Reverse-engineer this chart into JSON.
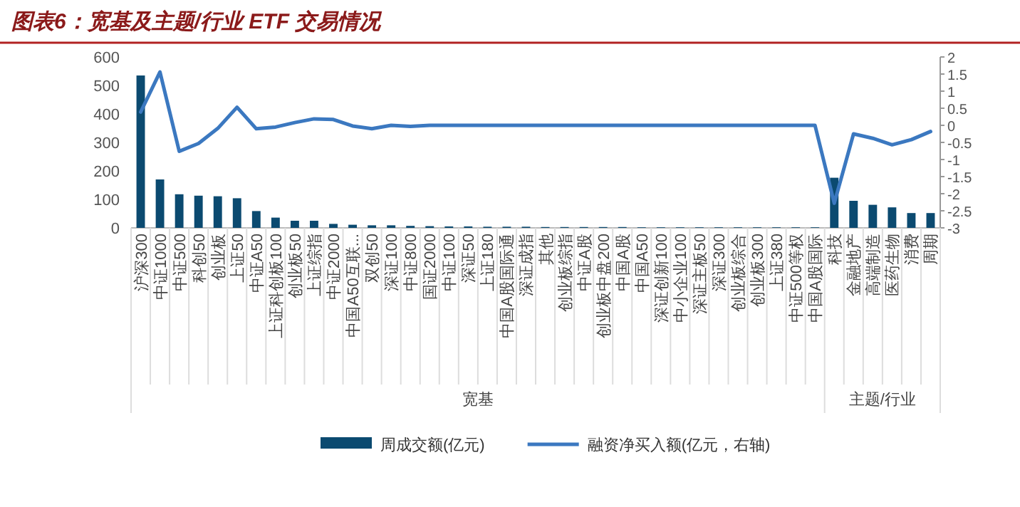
{
  "chart_data": {
    "type": "bar",
    "title": "图表6：宽基及主题/行业 ETF 交易情况",
    "categories": [
      "沪深300",
      "中证1000",
      "中证500",
      "科创50",
      "创业板",
      "上证50",
      "中证A50",
      "上证科创板100",
      "创业板50",
      "上证综指",
      "中证2000",
      "中国A50互联...",
      "双创50",
      "深证100",
      "中证800",
      "国证2000",
      "中证100",
      "深证50",
      "上证180",
      "中国A股国际通",
      "深证成指",
      "其他",
      "创业板综指",
      "中证A股",
      "创业板中盘200",
      "中国A股",
      "中国A50",
      "深证创新100",
      "中小企业100",
      "深证主板50",
      "深证300",
      "创业板综合",
      "创业板300",
      "上证380",
      "中证500等权",
      "中国A股国际",
      "科技",
      "金融地产",
      "高端制造",
      "医药生物",
      "消费",
      "周期"
    ],
    "series": [
      {
        "name": "周成交额(亿元)",
        "color": "#0b4a70",
        "values": [
          535,
          170,
          118,
          113,
          111,
          104,
          59,
          36,
          25,
          25,
          14,
          11,
          9,
          9,
          7,
          6,
          5,
          5,
          4,
          4,
          4,
          3,
          3,
          3,
          3,
          3,
          2,
          2,
          2,
          2,
          2,
          2,
          2,
          2,
          2,
          2,
          176,
          95,
          81,
          72,
          52,
          52
        ]
      },
      {
        "name": "融资净买入额(亿元，右轴)",
        "type": "line",
        "axis": "y2",
        "color": "#3b78c0",
        "values": [
          0.39,
          1.56,
          -0.76,
          -0.53,
          -0.09,
          0.53,
          -0.1,
          -0.05,
          0.08,
          0.19,
          0.17,
          -0.02,
          -0.1,
          0,
          -0.03,
          0,
          0,
          0,
          0,
          0,
          0,
          0,
          0,
          0,
          0,
          0,
          0,
          0,
          0,
          0,
          0,
          0,
          0,
          0,
          0,
          0,
          -2.28,
          -0.25,
          -0.38,
          -0.57,
          -0.42,
          -0.18
        ]
      }
    ],
    "ylim": [
      0,
      600
    ],
    "yticks": [
      0,
      100,
      200,
      300,
      400,
      500,
      600
    ],
    "y2lim": [
      -3,
      2
    ],
    "y2ticks": [
      2,
      1.5,
      1,
      0.5,
      0,
      -0.5,
      -1,
      -1.5,
      -2,
      -2.5,
      -3
    ],
    "annotations": [
      "宽基",
      "主题/行业"
    ],
    "legend": "bottom",
    "grid": false
  }
}
